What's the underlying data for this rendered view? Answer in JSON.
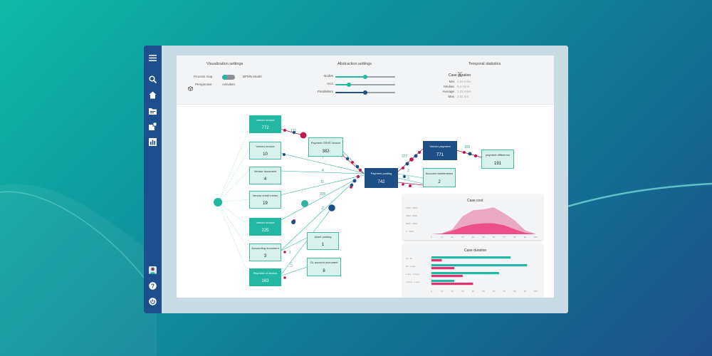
{
  "sidebar": {
    "icons": [
      "menu-icon",
      "search-icon",
      "home-icon",
      "folder-icon",
      "share-icon",
      "chart-icon",
      "user-avatar-icon",
      "help-icon",
      "power-icon"
    ]
  },
  "settings": {
    "visualization": {
      "title": "Visualization settings",
      "process_map": "Process map",
      "bpmn_model": "BPMN Model",
      "perspective": "Perspective",
      "activities": "Activities"
    },
    "abstraction": {
      "title": "Abstraction settings",
      "nodes": "Nodes",
      "arcs": "Arcs",
      "parallelism": "Parallelism",
      "nodes_level": 0.5,
      "arcs_level": 0.22,
      "parallelism_level": 0.5
    },
    "temporal": {
      "title": "Temporal statistics",
      "subtitle": "Case duration",
      "rows": [
        {
          "label": "Min",
          "value": "1.22 mins"
        },
        {
          "label": "Median",
          "value": "5.4 mins"
        },
        {
          "label": "Average",
          "value": "1.33 mins"
        },
        {
          "label": "Max",
          "value": "2.81 yrs"
        }
      ]
    }
  },
  "process_map": {
    "nodes": [
      {
        "label": "Vendor invoice",
        "value": "772"
      },
      {
        "label": "Vendor invoice",
        "value": "10"
      },
      {
        "label": "Vendor document",
        "value": "4"
      },
      {
        "label": "Vendor credit memo",
        "value": "19"
      },
      {
        "label": "Vendor invoice",
        "value": "225"
      },
      {
        "label": "Accounting document",
        "value": "3"
      },
      {
        "label": "Payment of invoice",
        "value": "163"
      },
      {
        "label": "Payment GR/IR invoice",
        "value": "382"
      },
      {
        "label": "Asset posting",
        "value": "1"
      },
      {
        "label": "GL account document",
        "value": "8"
      },
      {
        "label": "Payment posting",
        "value": "742"
      },
      {
        "label": "Vendor payment",
        "value": "771"
      },
      {
        "label": "Account maintenance",
        "value": "2"
      },
      {
        "label": "payment difference",
        "value": "191"
      }
    ],
    "edge_labels": [
      "171",
      "7",
      "4",
      "11",
      "205",
      "2",
      "1",
      "5",
      "377",
      "2",
      "2",
      "155"
    ]
  },
  "case_cost": {
    "title": "Case cost",
    "y_labels": [
      "1200 - 3000",
      "3000 - 6000",
      "6000 - 9000",
      "0 - 1200"
    ],
    "x_ticks": [
      "0",
      "10",
      "20",
      "30",
      "40",
      "50",
      "60",
      "70",
      "80",
      "90",
      "100"
    ],
    "chart_data": {
      "type": "area",
      "title": "Case cost",
      "x": [
        0,
        10,
        20,
        30,
        40,
        50,
        60,
        70,
        80,
        90,
        100
      ],
      "series": [
        {
          "values": [
            0,
            2,
            10,
            36,
            48,
            50,
            54,
            42,
            28,
            8,
            1
          ],
          "color": "#e9a0bd"
        },
        {
          "values": [
            0,
            1,
            7,
            15,
            20,
            22,
            22,
            18,
            10,
            3,
            0
          ],
          "color": "#ec4f8a"
        }
      ],
      "ylim": [
        0,
        60
      ]
    }
  },
  "case_duration": {
    "title": "Case duration",
    "y_labels": [
      "0s - 2h",
      "2h - 1 day",
      "1 day - 3 days",
      "3 days - 1 year"
    ],
    "x_ticks": [
      "0",
      "10",
      "20",
      "30",
      "40",
      "50",
      "60",
      "70",
      "80",
      "90",
      "100"
    ],
    "chart_data": {
      "type": "bar",
      "title": "Case duration",
      "categories": [
        "0s - 2h",
        "2h - 1 day",
        "1 day - 3 days",
        "3 days - 1 year"
      ],
      "series": [
        {
          "values": [
            76,
            92,
            65,
            22
          ],
          "color": "#22b8a6"
        },
        {
          "values": [
            10,
            22,
            30,
            40
          ],
          "color": "#e3306f"
        }
      ],
      "xlim": [
        0,
        100
      ]
    }
  },
  "colors": {
    "teal": "#22b8a2",
    "navy": "#1d4e86",
    "magenta": "#c8174e",
    "sidebar": "#1d4f8c"
  }
}
